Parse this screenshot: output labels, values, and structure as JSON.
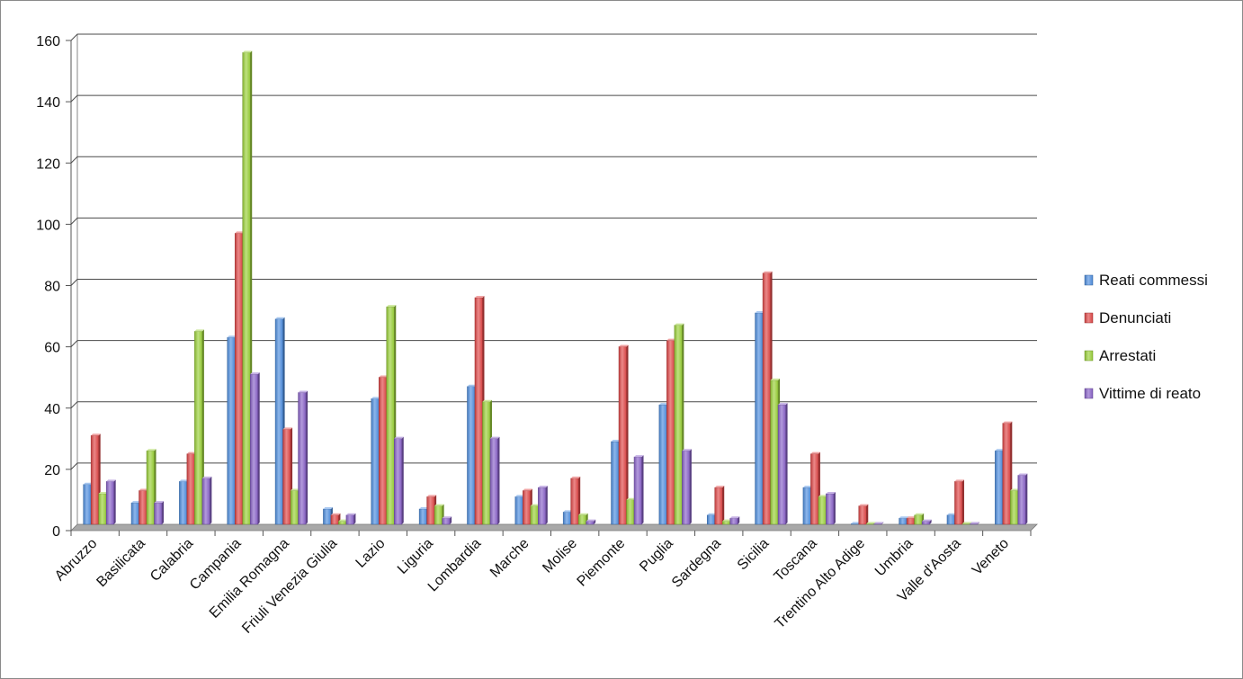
{
  "chart_data": {
    "type": "bar",
    "title": "",
    "xlabel": "",
    "ylabel": "",
    "ylim": [
      0,
      160
    ],
    "yticks": [
      0,
      20,
      40,
      60,
      80,
      100,
      120,
      140,
      160
    ],
    "grid": true,
    "legend_position": "right",
    "categories": [
      "Abruzzo",
      "Basilicata",
      "Calabria",
      "Campania",
      "Emilia Romagna",
      "Friuli Venezia Giulia",
      "Lazio",
      "Liguria",
      "Lombardia",
      "Marche",
      "Molise",
      "Piemonte",
      "Puglia",
      "Sardegna",
      "Sicilia",
      "Toscana",
      "Trentino Alto Adige",
      "Umbria",
      "Valle d'Aosta",
      "Veneto"
    ],
    "series": [
      {
        "name": "Reati commessi",
        "color": "#4f8fe0",
        "values": [
          13,
          7,
          14,
          61,
          67,
          5,
          41,
          5,
          45,
          9,
          4,
          27,
          39,
          3,
          69,
          12,
          0,
          2,
          3,
          24
        ]
      },
      {
        "name": "Denunciati",
        "color": "#e04848",
        "values": [
          29,
          11,
          23,
          95,
          31,
          3,
          48,
          9,
          74,
          11,
          15,
          58,
          60,
          12,
          82,
          23,
          6,
          2,
          14,
          33
        ]
      },
      {
        "name": "Arrestati",
        "color": "#9bd13a",
        "values": [
          10,
          24,
          63,
          154,
          11,
          1,
          71,
          6,
          40,
          6,
          3,
          8,
          65,
          1,
          47,
          9,
          0,
          3,
          0,
          11
        ]
      },
      {
        "name": "Vittime di reato",
        "color": "#8a63c9",
        "values": [
          14,
          7,
          15,
          49,
          43,
          3,
          28,
          2,
          28,
          12,
          1,
          22,
          24,
          2,
          39,
          10,
          0,
          1,
          0,
          16
        ]
      }
    ]
  }
}
